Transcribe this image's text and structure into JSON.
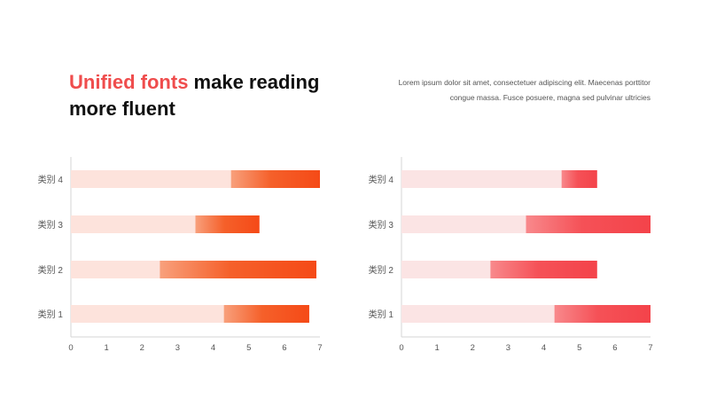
{
  "heading": {
    "accent": "Unified fonts",
    "rest": " make reading more fluent"
  },
  "description": "Lorem ipsum dolor sit amet, consectetuer adipiscing elit. Maecenas porttitor congue massa. Fusce posuere, magna sed pulvinar ultricies",
  "chart_data": [
    {
      "type": "bar",
      "orientation": "horizontal",
      "stacked": true,
      "categories": [
        "类别 1",
        "类别 2",
        "类别 3",
        "类别 4"
      ],
      "series": [
        {
          "values": [
            4.3,
            2.5,
            3.5,
            4.5
          ],
          "color": "#fde3dc"
        },
        {
          "values": [
            2.4,
            4.4,
            1.8,
            2.5
          ],
          "color": "#f55a1e"
        }
      ],
      "xlim": [
        0,
        7
      ],
      "xticks": [
        "0",
        "1",
        "2",
        "3",
        "4",
        "5",
        "6",
        "7"
      ],
      "grid": false,
      "legend": false
    },
    {
      "type": "bar",
      "orientation": "horizontal",
      "stacked": true,
      "categories": [
        "类别 1",
        "类别 2",
        "类别 3",
        "类别 4"
      ],
      "series": [
        {
          "values": [
            4.3,
            2.5,
            3.5,
            4.5
          ],
          "color": "#fbe4e4"
        },
        {
          "values": [
            2.7,
            3.0,
            3.5,
            1.0
          ],
          "color": "#f44a4f"
        }
      ],
      "xlim": [
        0,
        7
      ],
      "xticks": [
        "0",
        "1",
        "2",
        "3",
        "4",
        "5",
        "6",
        "7"
      ],
      "grid": false,
      "legend": false
    }
  ]
}
